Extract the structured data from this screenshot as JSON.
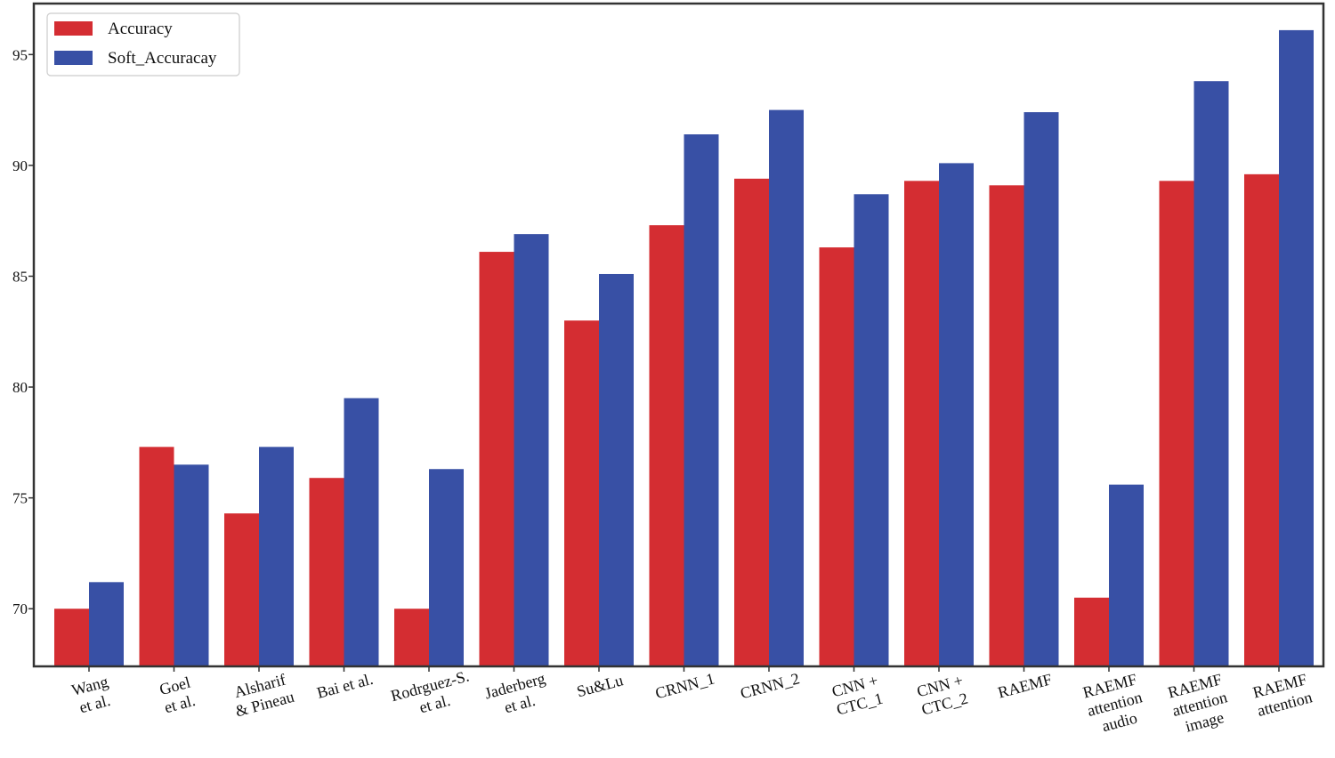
{
  "chart_data": {
    "type": "bar",
    "title": "",
    "xlabel": "",
    "ylabel": "",
    "ylim": [
      67.4,
      97.3
    ],
    "yticks": [
      70,
      75,
      80,
      85,
      90,
      95
    ],
    "grid": false,
    "legend_position": "top-left",
    "categories": [
      [
        "Wang",
        "et al."
      ],
      [
        "Goel",
        "et al."
      ],
      [
        "Alsharif",
        "& Pineau"
      ],
      [
        "Bai et al."
      ],
      [
        "Rodrguez-S.",
        "et al."
      ],
      [
        "Jaderberg",
        "et al."
      ],
      [
        "Su&Lu"
      ],
      [
        "CRNN_1"
      ],
      [
        "CRNN_2"
      ],
      [
        "CNN +",
        "CTC_1"
      ],
      [
        "CNN +",
        "CTC_2"
      ],
      [
        "RAEMF"
      ],
      [
        "RAEMF",
        "attention",
        "audio"
      ],
      [
        "RAEMF",
        "attention",
        "image"
      ],
      [
        "RAEMF",
        "attention"
      ]
    ],
    "series": [
      {
        "name": "Accuracy",
        "color": "#d42d32",
        "values": [
          70.0,
          77.3,
          74.3,
          75.9,
          70.0,
          86.1,
          83.0,
          87.3,
          89.4,
          86.3,
          89.3,
          89.1,
          70.5,
          89.3,
          89.6
        ]
      },
      {
        "name": "Soft_Accuracay",
        "color": "#3850a5",
        "values": [
          71.2,
          76.5,
          77.3,
          79.5,
          76.3,
          86.9,
          85.1,
          91.4,
          92.5,
          88.7,
          90.1,
          92.4,
          75.6,
          93.8,
          96.1
        ]
      }
    ]
  }
}
